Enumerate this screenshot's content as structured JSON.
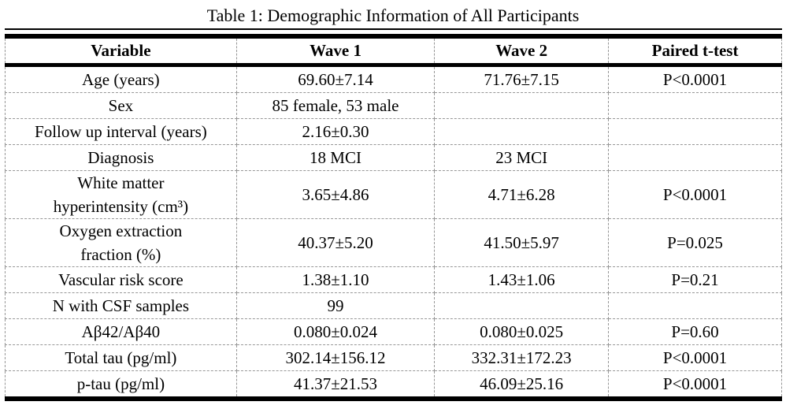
{
  "title": "Table 1: Demographic Information of All Participants",
  "table": {
    "columns": [
      "Variable",
      "Wave 1",
      "Wave 2",
      "Paired t-test"
    ],
    "rows": [
      {
        "variable": [
          "Age (years)"
        ],
        "wave1": "69.60±7.14",
        "wave2": "71.76±7.15",
        "ttest": "P<0.0001"
      },
      {
        "variable": [
          "Sex"
        ],
        "wave1": "85 female, 53 male",
        "wave2": "",
        "ttest": ""
      },
      {
        "variable": [
          "Follow up interval (years)"
        ],
        "wave1": "2.16±0.30",
        "wave2": "",
        "ttest": ""
      },
      {
        "variable": [
          "Diagnosis"
        ],
        "wave1": "18 MCI",
        "wave2": "23 MCI",
        "ttest": ""
      },
      {
        "variable": [
          "White matter",
          "hyperintensity (cm³)"
        ],
        "wave1": "3.65±4.86",
        "wave2": "4.71±6.28",
        "ttest": "P<0.0001"
      },
      {
        "variable": [
          "Oxygen extraction",
          "fraction (%)"
        ],
        "wave1": "40.37±5.20",
        "wave2": "41.50±5.97",
        "ttest": "P=0.025"
      },
      {
        "variable": [
          "Vascular risk score"
        ],
        "wave1": "1.38±1.10",
        "wave2": "1.43±1.06",
        "ttest": "P=0.21"
      },
      {
        "variable": [
          "N with CSF samples"
        ],
        "wave1": "99",
        "wave2": "",
        "ttest": ""
      },
      {
        "variable": [
          "Aβ42/Aβ40"
        ],
        "wave1": "0.080±0.024",
        "wave2": "0.080±0.025",
        "ttest": "P=0.60"
      },
      {
        "variable": [
          "Total tau (pg/ml)"
        ],
        "wave1": "302.14±156.12",
        "wave2": "332.31±172.23",
        "ttest": "P<0.0001"
      },
      {
        "variable": [
          "p-tau (pg/ml)"
        ],
        "wave1": "41.37±21.53",
        "wave2": "46.09±25.16",
        "ttest": "P<0.0001"
      }
    ]
  }
}
